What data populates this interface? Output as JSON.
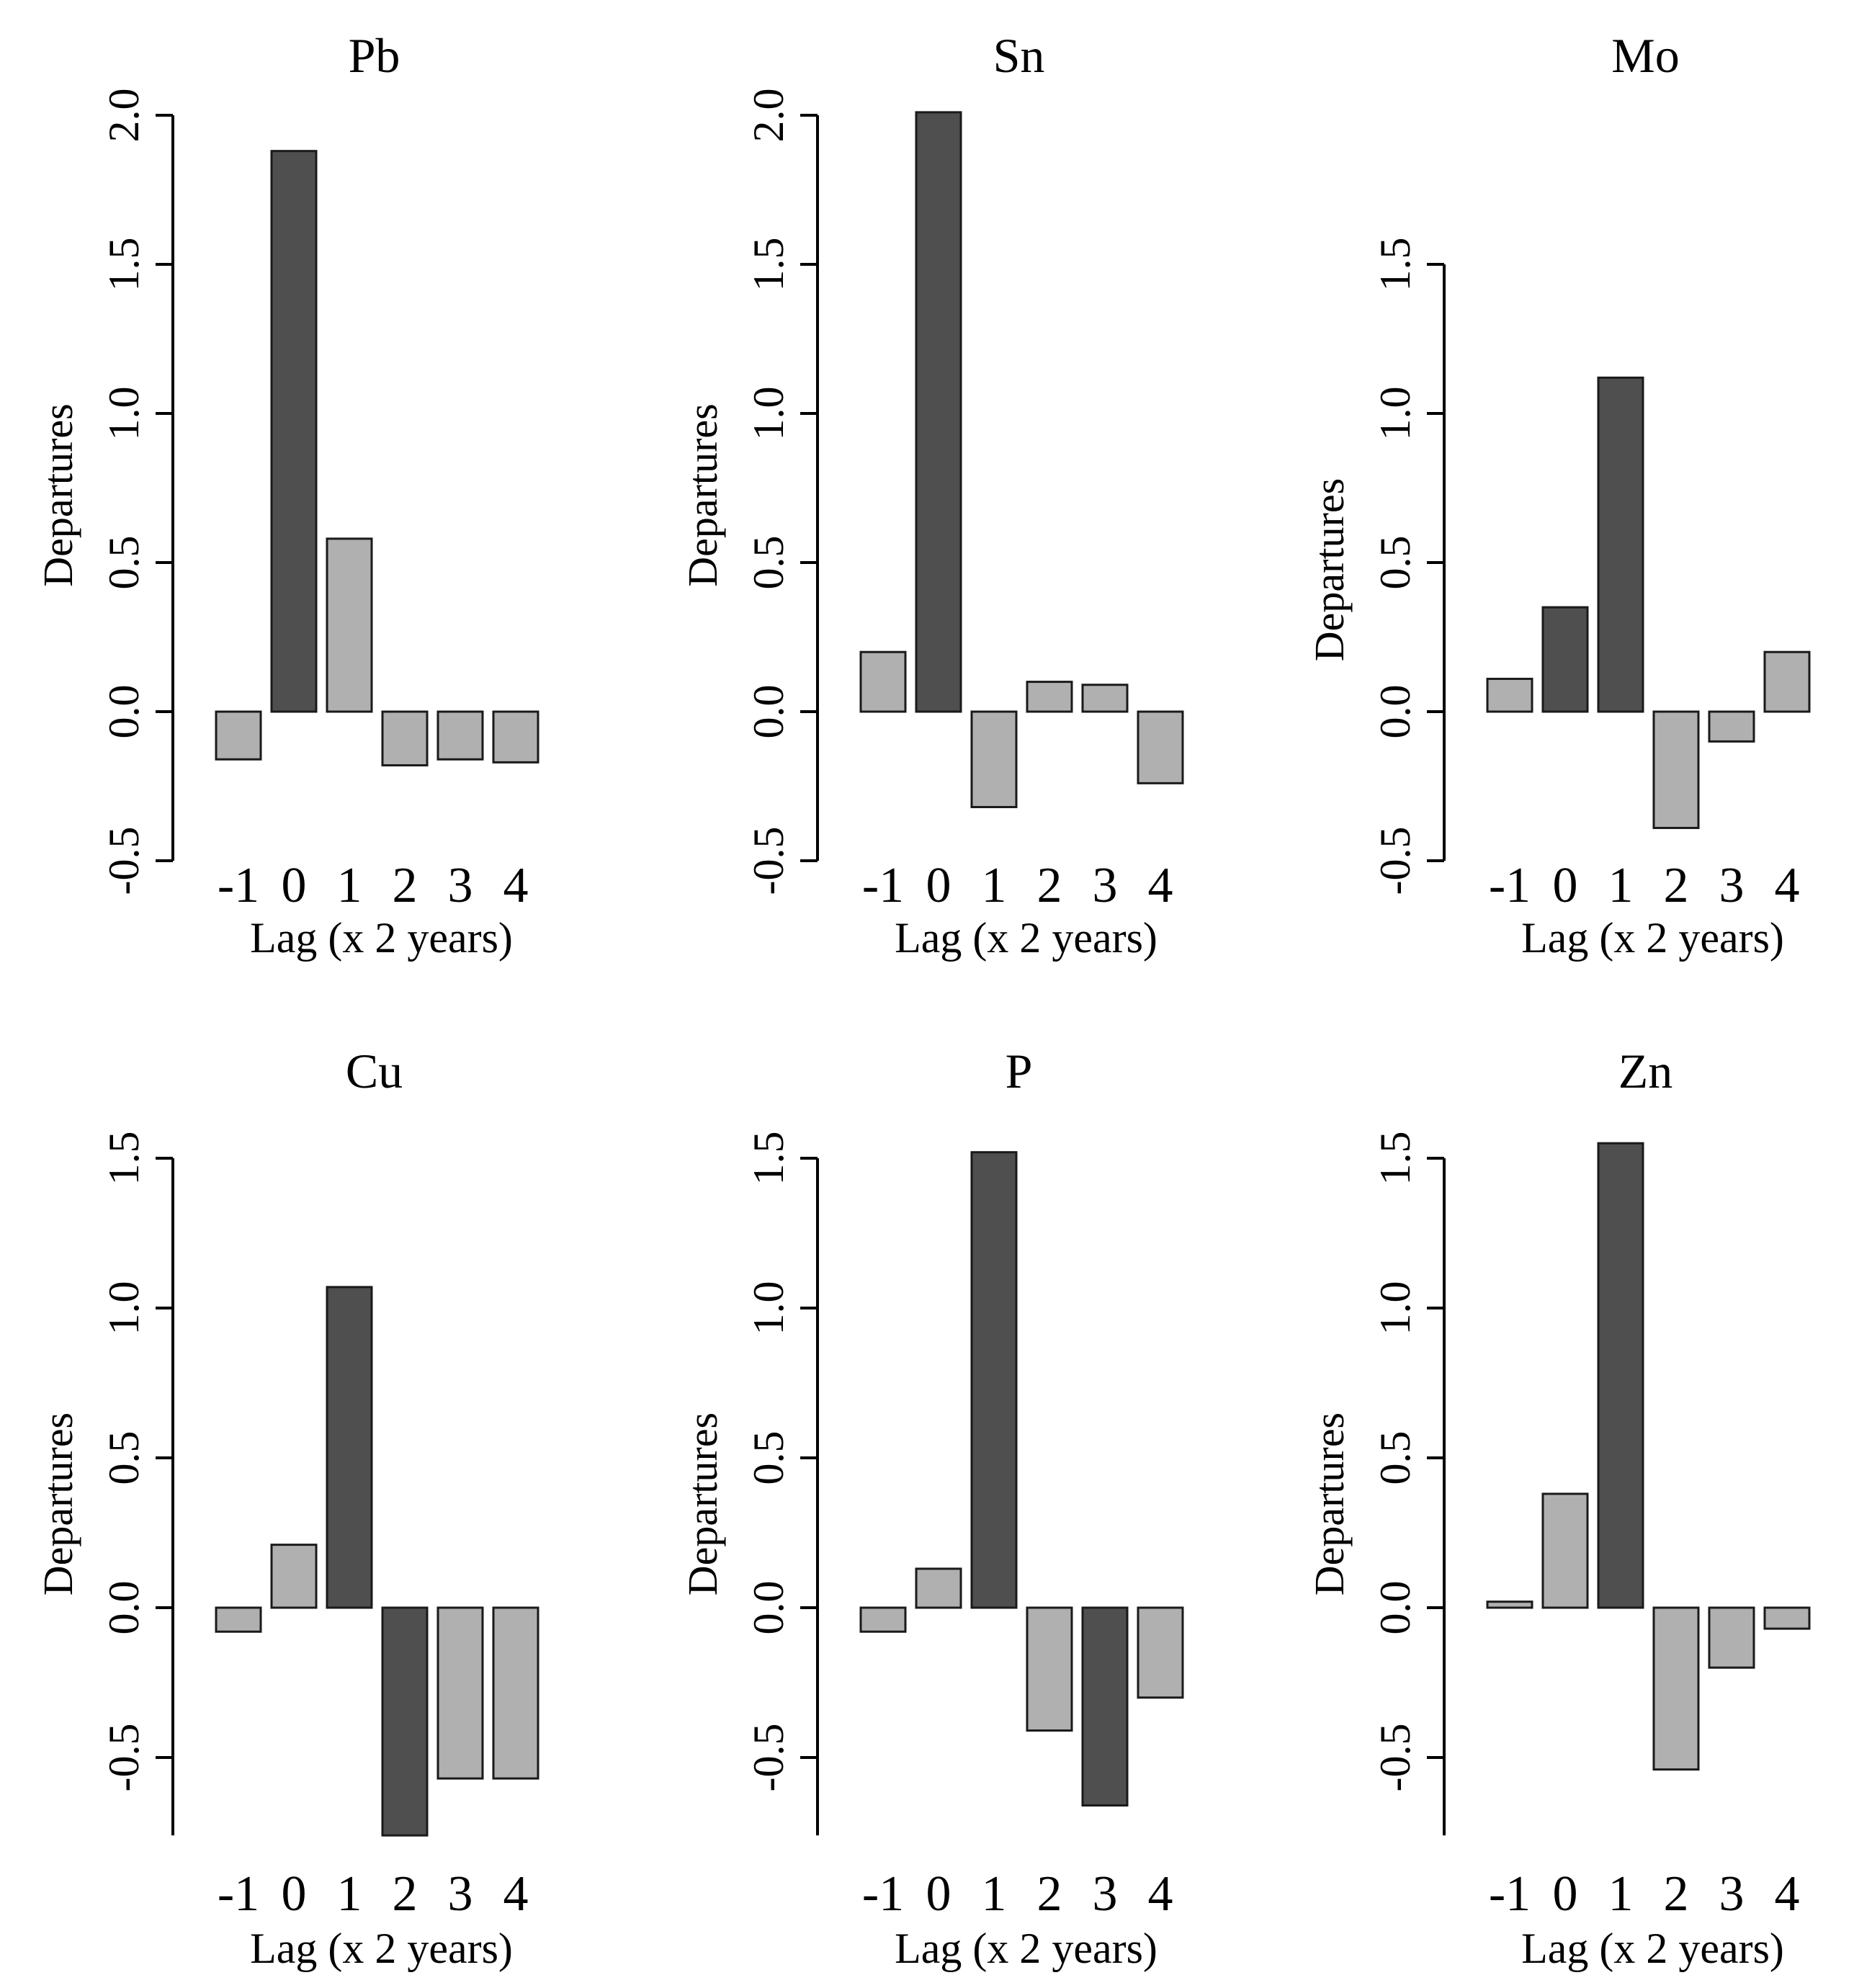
{
  "figure": {
    "layout": "2x3 panel grid",
    "colors": {
      "highlight_fill": "#4f4f4f",
      "normal_fill": "#b0b0b0",
      "bar_stroke": "#1a1a1a",
      "axis": "#000000",
      "background": "#ffffff"
    }
  },
  "chart_data": [
    {
      "type": "bar",
      "title": "Pb",
      "xlabel": "Lag (x 2 years)",
      "ylabel": "Departures",
      "categories": [
        "-1",
        "0",
        "1",
        "2",
        "3",
        "4"
      ],
      "values": [
        -0.16,
        1.88,
        0.58,
        -0.18,
        -0.16,
        -0.17
      ],
      "highlight": [
        false,
        true,
        false,
        false,
        false,
        false
      ],
      "ylim": [
        -0.5,
        2.0
      ],
      "yticks": [
        -0.5,
        0.0,
        0.5,
        1.0,
        1.5,
        2.0
      ],
      "ytick_labels": [
        "-0.5",
        "0.0",
        "0.5",
        "1.0",
        "1.5",
        "2.0"
      ],
      "grid": false
    },
    {
      "type": "bar",
      "title": "Sn",
      "xlabel": "Lag (x 2 years)",
      "ylabel": "Departures",
      "categories": [
        "-1",
        "0",
        "1",
        "2",
        "3",
        "4"
      ],
      "values": [
        0.2,
        2.01,
        -0.32,
        0.1,
        0.09,
        -0.24
      ],
      "highlight": [
        false,
        true,
        false,
        false,
        false,
        false
      ],
      "ylim": [
        -0.5,
        2.0
      ],
      "yticks": [
        -0.5,
        0.0,
        0.5,
        1.0,
        1.5,
        2.0
      ],
      "ytick_labels": [
        "-0.5",
        "0.0",
        "0.5",
        "1.0",
        "1.5",
        "2.0"
      ],
      "grid": false
    },
    {
      "type": "bar",
      "title": "Mo",
      "xlabel": "Lag (x 2 years)",
      "ylabel": "Departures",
      "categories": [
        "-1",
        "0",
        "1",
        "2",
        "3",
        "4"
      ],
      "values": [
        0.11,
        0.35,
        1.12,
        -0.39,
        -0.1,
        0.2
      ],
      "highlight": [
        false,
        true,
        true,
        false,
        false,
        false
      ],
      "ylim": [
        -0.5,
        1.5
      ],
      "yticks": [
        -0.5,
        0.0,
        0.5,
        1.0,
        1.5
      ],
      "ytick_labels": [
        "-0.5",
        "0.0",
        "0.5",
        "1.0",
        "1.5"
      ],
      "grid": false
    },
    {
      "type": "bar",
      "title": "Cu",
      "xlabel": "Lag (x 2 years)",
      "ylabel": "Departures",
      "categories": [
        "-1",
        "0",
        "1",
        "2",
        "3",
        "4"
      ],
      "values": [
        -0.08,
        0.21,
        1.07,
        -0.76,
        -0.57,
        -0.57
      ],
      "highlight": [
        false,
        false,
        true,
        true,
        false,
        false
      ],
      "ylim": [
        -0.76,
        1.5
      ],
      "yticks": [
        -0.5,
        0.0,
        0.5,
        1.0,
        1.5
      ],
      "ytick_labels": [
        "-0.5",
        "0.0",
        "0.5",
        "1.0",
        "1.5"
      ],
      "grid": false
    },
    {
      "type": "bar",
      "title": "P",
      "xlabel": "Lag (x 2 years)",
      "ylabel": "Departures",
      "categories": [
        "-1",
        "0",
        "1",
        "2",
        "3",
        "4"
      ],
      "values": [
        -0.08,
        0.13,
        1.52,
        -0.41,
        -0.66,
        -0.3
      ],
      "highlight": [
        false,
        false,
        true,
        false,
        true,
        false
      ],
      "ylim": [
        -0.76,
        1.5
      ],
      "yticks": [
        -0.5,
        0.0,
        0.5,
        1.0,
        1.5
      ],
      "ytick_labels": [
        "-0.5",
        "0.0",
        "0.5",
        "1.0",
        "1.5"
      ],
      "grid": false
    },
    {
      "type": "bar",
      "title": "Zn",
      "xlabel": "Lag (x 2 years)",
      "ylabel": "Departures",
      "categories": [
        "-1",
        "0",
        "1",
        "2",
        "3",
        "4"
      ],
      "values": [
        0.02,
        0.38,
        1.55,
        -0.54,
        -0.2,
        -0.07
      ],
      "highlight": [
        false,
        false,
        true,
        false,
        false,
        false
      ],
      "ylim": [
        -0.76,
        1.5
      ],
      "yticks": [
        -0.5,
        0.0,
        0.5,
        1.0,
        1.5
      ],
      "ytick_labels": [
        "-0.5",
        "0.0",
        "0.5",
        "1.0",
        "1.5"
      ],
      "grid": false
    }
  ]
}
